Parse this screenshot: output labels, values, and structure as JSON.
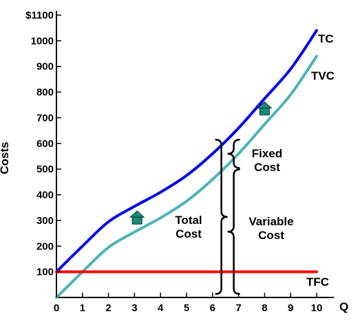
{
  "chart_data": {
    "type": "line",
    "xlabel": "Q",
    "ylabel": "Costs",
    "xlim": [
      0,
      10
    ],
    "ylim": [
      0,
      1100
    ],
    "x_ticks": [
      "0",
      "1",
      "2",
      "3",
      "4",
      "5",
      "6",
      "7",
      "8",
      "9",
      "10"
    ],
    "y_ticks": [
      "100",
      "200",
      "300",
      "400",
      "500",
      "600",
      "700",
      "800",
      "900",
      "1000",
      "$1100"
    ],
    "series": [
      {
        "name": "TC",
        "color": "#0000ee",
        "x": [
          0,
          1,
          2,
          3,
          4,
          5,
          6,
          7,
          8,
          9,
          10
        ],
        "y": [
          100,
          200,
          295,
          355,
          410,
          475,
          560,
          660,
          775,
          890,
          1040
        ]
      },
      {
        "name": "TVC",
        "color": "#4bb3b8",
        "x": [
          0,
          1,
          2,
          3,
          4,
          5,
          6,
          7,
          8,
          9,
          10
        ],
        "y": [
          0,
          100,
          195,
          255,
          310,
          375,
          460,
          560,
          675,
          790,
          940
        ]
      },
      {
        "name": "TFC",
        "color": "#ff0000",
        "x": [
          0,
          10
        ],
        "y": [
          100,
          100
        ]
      }
    ],
    "annotations": {
      "fixed_cost": [
        "Fixed",
        "Cost"
      ],
      "total_cost": [
        "Total",
        "Cost"
      ],
      "variable_cost": [
        "Variable",
        "Cost"
      ]
    },
    "markers": [
      {
        "name": "house-marker",
        "color": "#1a8a7a",
        "x": 3.1,
        "y": 310
      },
      {
        "name": "house-marker",
        "color": "#1a8a7a",
        "x": 8.0,
        "y": 735
      }
    ],
    "brace_at_x": 6.55
  }
}
